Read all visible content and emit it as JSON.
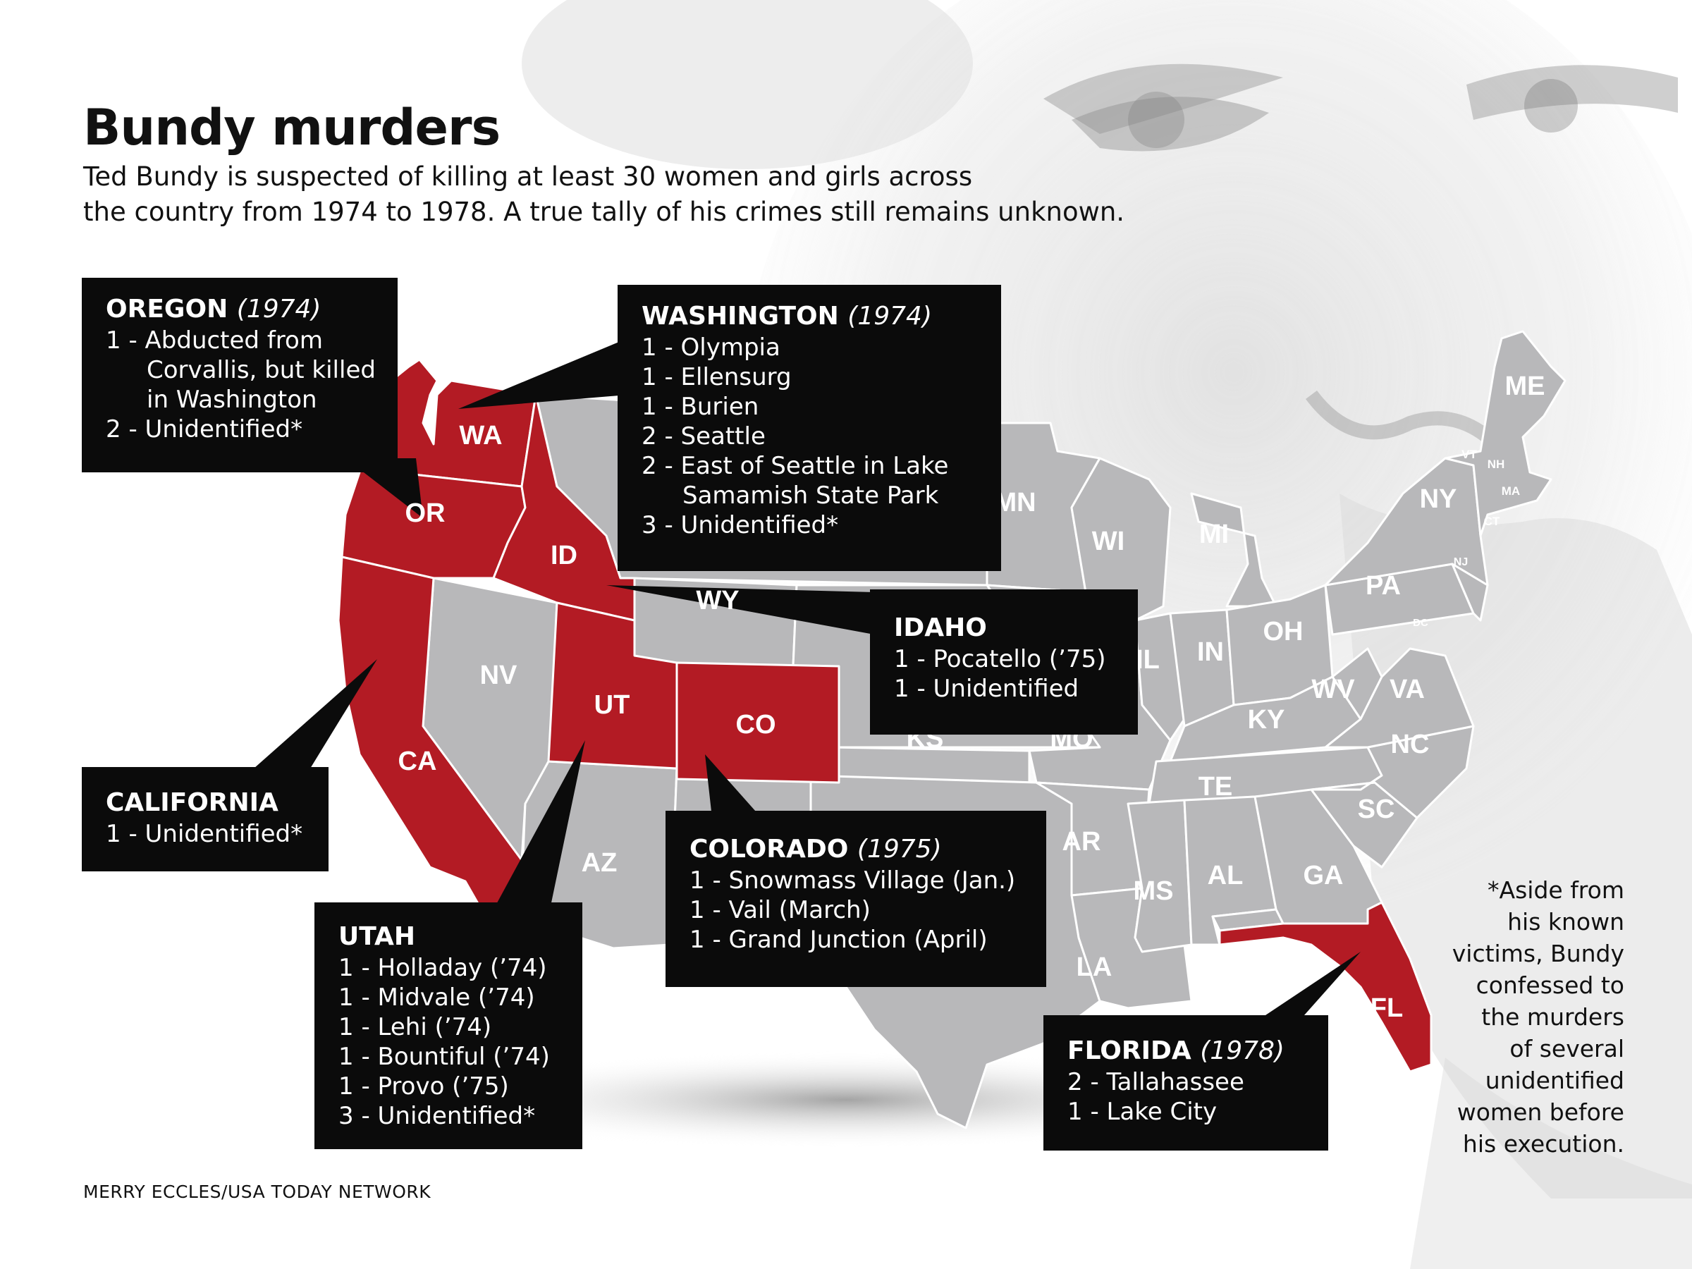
{
  "title": "Bundy murders",
  "subtitle": {
    "line1": "Ted Bundy is suspected of killing at least 30 women and girls across",
    "line2": "the country from 1974 to 1978. A true tally of his crimes still remains unknown."
  },
  "colors": {
    "highlight": "#b31b24",
    "state_gray": "#b8b8ba",
    "box": "#0b0b0b"
  },
  "highlighted_states": [
    "WA",
    "OR",
    "ID",
    "CA",
    "NV-excluded",
    "UT",
    "CO",
    "FL"
  ],
  "state_labels": {
    "WA": "WA",
    "OR": "OR",
    "ID": "ID",
    "CA": "CA",
    "NV": "NV",
    "UT": "UT",
    "CO": "CO",
    "AZ": "AZ",
    "WY": "WY",
    "MN": "MN",
    "WI": "WI",
    "MI": "MI",
    "IL": "IL",
    "IN": "IN",
    "OH": "OH",
    "PA": "PA",
    "NY": "NY",
    "ME": "ME",
    "VT": "VT",
    "NH": "NH",
    "MA": "MA",
    "CT": "CT",
    "NJ": "NJ",
    "DC": "DC",
    "WV": "WV",
    "VA": "VA",
    "KY": "KY",
    "NC": "NC",
    "TE": "TE",
    "SC": "SC",
    "GA": "GA",
    "AL": "AL",
    "MS": "MS",
    "AR": "AR",
    "LA": "LA",
    "FL": "FL",
    "KS": "KS",
    "MO": "MO"
  },
  "boxes": {
    "oregon": {
      "state": "OREGON",
      "year": "(1974)",
      "lines": [
        "1 - Abducted from",
        "Corvallis, but killed",
        "in Washington",
        "2 - Unidentified*"
      ]
    },
    "washington": {
      "state": "WASHINGTON",
      "year": "(1974)",
      "lines": [
        "1 - Olympia",
        "1 - Ellensurg",
        "1 - Burien",
        "2 - Seattle",
        "2 - East of Seattle in Lake",
        "Samamish State Park",
        "3 - Unidentified*"
      ]
    },
    "idaho": {
      "state": "IDAHO",
      "lines": [
        "1 - Pocatello (’75)",
        "1 - Unidentified"
      ]
    },
    "california": {
      "state": "CALIFORNIA",
      "lines": [
        "1 - Unidentified*"
      ]
    },
    "colorado": {
      "state": "COLORADO",
      "year": "(1975)",
      "lines": [
        "1 - Snowmass Village (Jan.)",
        "1 - Vail (March)",
        "1 - Grand Junction (April)"
      ]
    },
    "utah": {
      "state": "UTAH",
      "lines": [
        "1 - Holladay (’74)",
        "1 - Midvale (’74)",
        "1 - Lehi (’74)",
        "1 - Bountiful (’74)",
        "1 - Provo (’75)",
        "3 - Unidentified*"
      ]
    },
    "florida": {
      "state": "FLORIDA",
      "year": "(1978)",
      "lines": [
        "2 - Tallahassee",
        "1 - Lake City"
      ]
    }
  },
  "footnote": {
    "lines": [
      "*Aside from",
      "his known",
      "victims, Bundy",
      "confessed to",
      "the murders",
      "of several",
      "unidentified",
      "women before",
      "his execution."
    ]
  },
  "credit": "MERRY ECCLES/USA TODAY NETWORK"
}
